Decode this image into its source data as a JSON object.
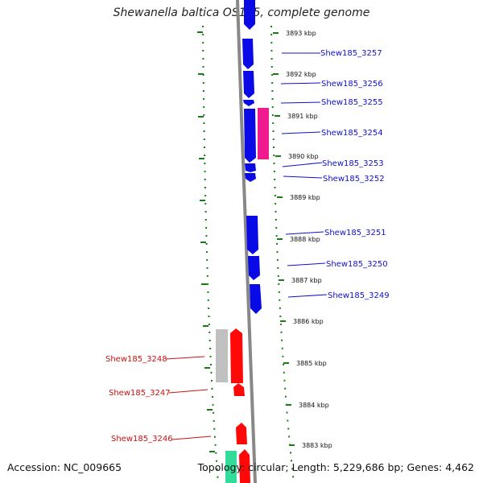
{
  "title": "Shewanella baltica OS185, complete genome",
  "accession": "Accession: NC_009665",
  "footer": "Topology: circular; Length: 5,229,686 bp; Genes: 4,462",
  "colors": {
    "forward": "#0a0ae6",
    "reverse": "#ff0808",
    "pink": "#ee1a8e",
    "gray": "#c0c0c0",
    "teal": "#33dd99",
    "ruler": "#1a7a1a",
    "backbone": "#888888",
    "label_blue": "#1010cc",
    "label_red": "#cc1010"
  },
  "ticks": [
    "3893 kbp",
    "3892 kbp",
    "3891 kbp",
    "3890 kbp",
    "3889 kbp",
    "3888 kbp",
    "3887 kbp",
    "3886 kbp",
    "3885 kbp",
    "3884 kbp",
    "3883 kbp"
  ],
  "genes_right": [
    "Shew185_3257",
    "Shew185_3256",
    "Shew185_3255",
    "Shew185_3254",
    "Shew185_3253",
    "Shew185_3252",
    "Shew185_3251",
    "Shew185_3250",
    "Shew185_3249"
  ],
  "genes_left": [
    "Shew185_3248",
    "Shew185_3247",
    "Shew185_3246"
  ]
}
